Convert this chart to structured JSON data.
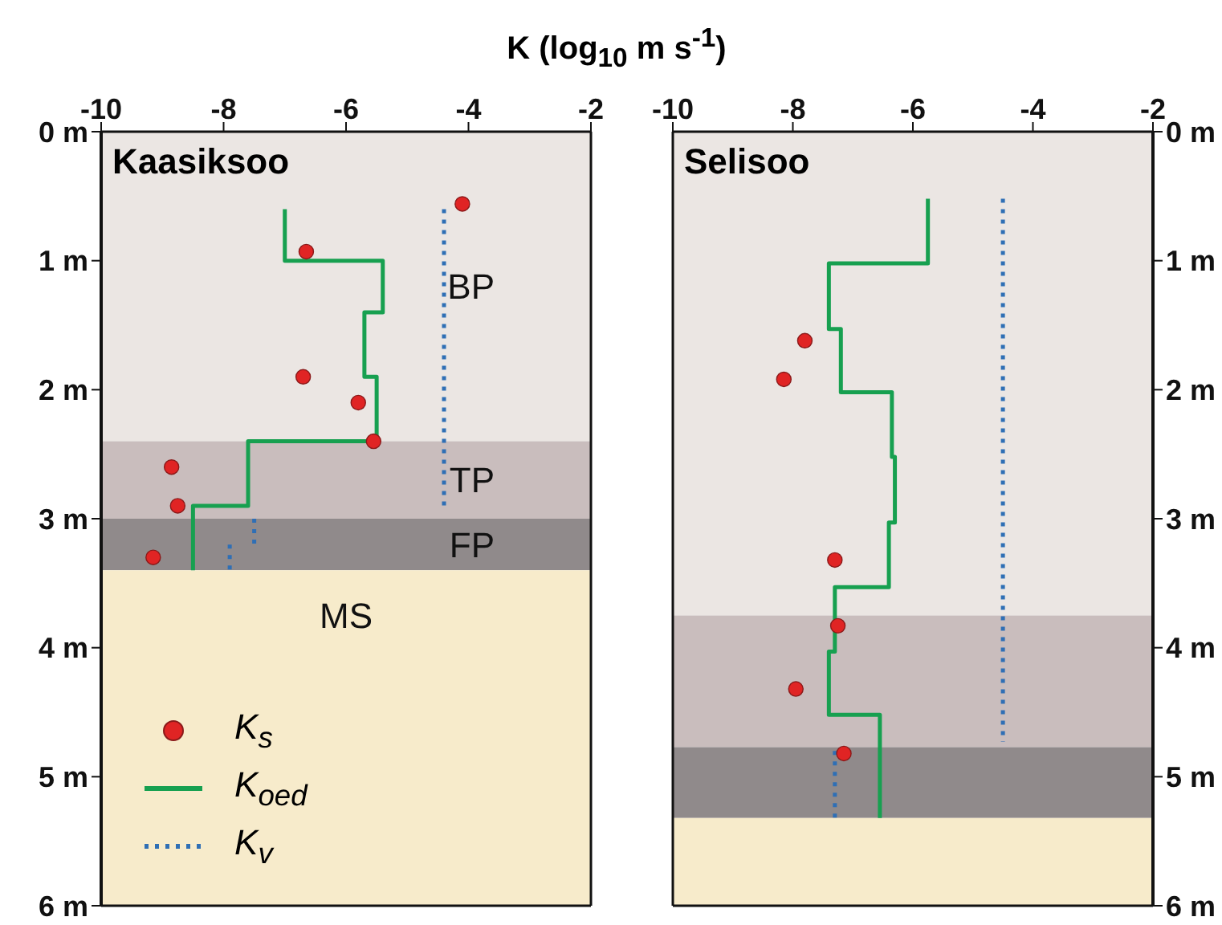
{
  "chart_data": [
    {
      "type": "scatter",
      "title": "Kaasiksoo",
      "xlabel": "K (log$_{10}$ m s$^{-1}$)",
      "xlim": [
        -10,
        -2
      ],
      "xticks": [
        -10,
        -8,
        -6,
        -4,
        -2
      ],
      "ylim": [
        6,
        0
      ],
      "yticks": [
        {
          "value": 0,
          "label": "0 m"
        },
        {
          "value": 1,
          "label": "1 m"
        },
        {
          "value": 2,
          "label": "2 m"
        },
        {
          "value": 3,
          "label": "3 m"
        },
        {
          "value": 4,
          "label": "4 m"
        },
        {
          "value": 5,
          "label": "5 m"
        },
        {
          "value": 6,
          "label": "6 m"
        }
      ],
      "legend": "bottom left",
      "bands": [
        {
          "axis": "y",
          "from": 0,
          "to": 2.4,
          "label": "BP",
          "color": "#ebe6e3"
        },
        {
          "axis": "y",
          "from": 2.4,
          "to": 3.0,
          "label": "TP",
          "color": "#c9bdbd"
        },
        {
          "axis": "y",
          "from": 3.0,
          "to": 3.4,
          "label": "FP",
          "color": "#908a8b"
        },
        {
          "axis": "y",
          "from": 3.4,
          "to": 6,
          "label": "MS",
          "color": "#f7ebcb"
        }
      ],
      "series": [
        {
          "name": "K$_{s}$",
          "marker": "circle",
          "color": "#e02424",
          "x": [
            -4.1,
            -6.65,
            -6.7,
            -5.8,
            -5.55,
            -8.85,
            -8.75,
            -9.15
          ],
          "values": [
            0.56,
            0.93,
            1.9,
            2.1,
            2.4,
            2.6,
            2.9,
            3.3
          ]
        },
        {
          "name": "K$_{oed}$",
          "type": "line",
          "line_style": "solid",
          "color": "#17a050",
          "x": [
            -7.0,
            -7.0,
            -5.4,
            -5.4,
            -5.7,
            -5.7,
            -5.5,
            -5.5,
            -7.6,
            -7.6,
            -8.5,
            -8.5
          ],
          "values": [
            0.6,
            1.0,
            1.0,
            1.4,
            1.4,
            1.9,
            1.9,
            2.4,
            2.4,
            2.9,
            2.9,
            3.4
          ]
        },
        {
          "name": "K$_{v}$",
          "type": "line",
          "line_style": "dotted",
          "color": "#2f6fb5",
          "x": [
            -4.4,
            -4.4,
            null,
            -7.5,
            -7.5,
            null,
            -7.9,
            -7.9
          ],
          "values": [
            0.6,
            2.9,
            null,
            3.0,
            3.2,
            null,
            3.2,
            3.4
          ]
        }
      ]
    },
    {
      "type": "scatter",
      "title": "Selisoo",
      "xlim": [
        -10,
        -2
      ],
      "xticks": [
        -10,
        -8,
        -6,
        -4,
        -2
      ],
      "ylim": [
        6,
        0
      ],
      "yticks": [
        {
          "value": 0,
          "label": "0 m"
        },
        {
          "value": 1,
          "label": "1 m"
        },
        {
          "value": 2,
          "label": "2 m"
        },
        {
          "value": 3,
          "label": "3 m"
        },
        {
          "value": 4,
          "label": "4 m"
        },
        {
          "value": 5,
          "label": "5 m"
        },
        {
          "value": 6,
          "label": "6 m"
        }
      ],
      "bands": [
        {
          "axis": "y",
          "from": 0,
          "to": 3.75,
          "color": "#ebe6e3"
        },
        {
          "axis": "y",
          "from": 3.75,
          "to": 4.77,
          "color": "#c9bdbd"
        },
        {
          "axis": "y",
          "from": 4.77,
          "to": 5.32,
          "color": "#908a8b"
        },
        {
          "axis": "y",
          "from": 5.32,
          "to": 6,
          "color": "#f7ebcb"
        }
      ],
      "series": [
        {
          "marker": "circle",
          "color": "#e02424",
          "x": [
            -7.8,
            -8.15,
            -7.3,
            -7.25,
            -7.95,
            -7.15
          ],
          "values": [
            1.62,
            1.92,
            3.32,
            3.83,
            4.32,
            4.82
          ]
        },
        {
          "type": "line",
          "line_style": "solid",
          "color": "#17a050",
          "x": [
            -5.75,
            -5.75,
            -7.4,
            -7.4,
            -7.2,
            -7.2,
            -6.35,
            -6.35,
            -6.3,
            -6.3,
            -6.4,
            -6.4,
            -7.3,
            -7.3,
            -7.4,
            -7.4,
            -6.55,
            -6.55
          ],
          "values": [
            0.52,
            1.02,
            1.02,
            1.53,
            1.53,
            2.02,
            2.02,
            2.52,
            2.52,
            3.03,
            3.03,
            3.53,
            3.53,
            4.03,
            4.03,
            4.52,
            4.52,
            5.32
          ]
        },
        {
          "type": "line",
          "line_style": "dotted",
          "color": "#2f6fb5",
          "x": [
            -4.5,
            -4.5,
            null,
            -7.3,
            -7.3
          ],
          "values": [
            0.52,
            4.73,
            null,
            4.8,
            5.32
          ]
        }
      ]
    }
  ]
}
